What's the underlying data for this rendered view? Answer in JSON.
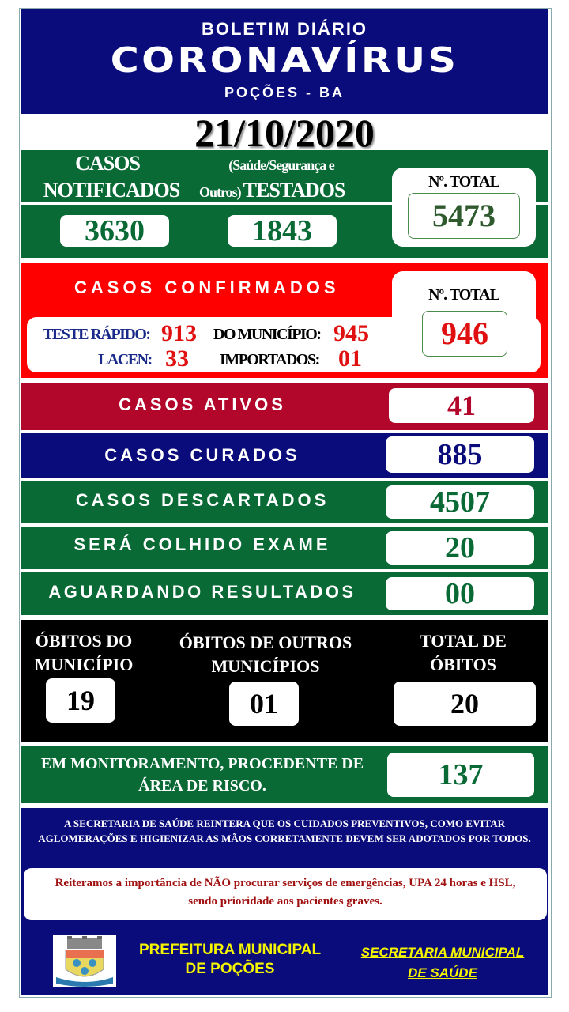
{
  "header": {
    "line1": "BOLETIM DIÁRIO",
    "line2": "CORONAVÍRUS",
    "line3": "POÇÕES - BA"
  },
  "date": "21/10/2020",
  "tests": {
    "notified_l1": "CASOS",
    "notified_l2": "NOTIFICADOS",
    "tested_l1": "(Saúde/Segurança e",
    "tested_l2a": "Outros)",
    "tested_l2b": "TESTADOS",
    "notified": "3630",
    "tested": "1843",
    "total_label": "Nº. TOTAL",
    "total": "5473"
  },
  "confirmed": {
    "title": "CASOS CONFIRMADOS",
    "rapid_label": "TESTE RÁPIDO:",
    "rapid": "913",
    "lacen_label": "LACEN:",
    "lacen": "33",
    "municipal_label": "DO MUNICÍPIO:",
    "municipal": "945",
    "imported_label": "IMPORTADOS:",
    "imported": "01",
    "total_label": "Nº. TOTAL",
    "total": "946"
  },
  "rows": [
    {
      "label": "CASOS ATIVOS",
      "value": "41"
    },
    {
      "label": "CASOS CURADOS",
      "value": "885"
    },
    {
      "label": "CASOS DESCARTADOS",
      "value": "4507"
    },
    {
      "label": "SERÁ COLHIDO EXAME",
      "value": "20"
    },
    {
      "label": "AGUARDANDO RESULTADOS",
      "value": "00"
    }
  ],
  "deaths": {
    "municipal_l1": "ÓBITOS DO",
    "municipal_l2": "MUNICÍPIO",
    "municipal": "19",
    "other_l1": "ÓBITOS DE OUTROS",
    "other_l2": "MUNICÍPIOS",
    "other": "01",
    "total_l1": "TOTAL DE",
    "total_l2": "ÓBITOS",
    "total": "20"
  },
  "monitoring": {
    "l1": "EM MONITORAMENTO, PROCEDENTE DE",
    "l2": "ÁREA DE RISCO.",
    "value": "137"
  },
  "notice": "A SECRETARIA DE SAÚDE REINTERA QUE OS CUIDADOS PREVENTIVOS, COMO EVITAR AGLOMERAÇÕES E HIGIENIZAR AS MÃOS CORRETAMENTE DEVEM SER ADOTADOS POR TODOS.",
  "warning": "Reiteramos a importância de NÃO procurar serviços de emergências, UPA 24 horas e HSL, sendo prioridade aos pacientes graves.",
  "footer": {
    "prefeitura_l1": "PREFEITURA MUNICIPAL",
    "prefeitura_l2": "DE POÇÕES",
    "secretaria_l1": "SECRETARIA MUNICIPAL",
    "secretaria_l2": "DE SAÚDE",
    "logo_text": "FIDES et LABOR"
  },
  "colors": {
    "navy": "#0b0c7c",
    "green": "#0a6a36",
    "red": "#ff0000",
    "crimson": "#b3062b",
    "black": "#000000"
  }
}
